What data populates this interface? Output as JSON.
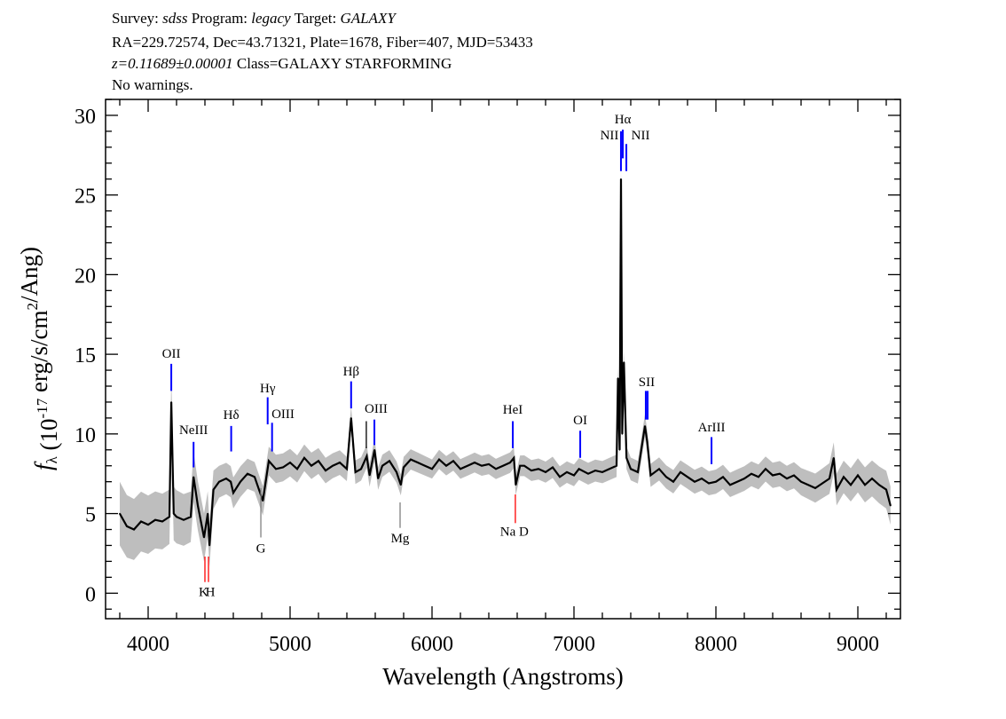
{
  "header": {
    "line1": {
      "survey_label": "Survey:",
      "survey": "sdss",
      "program_label": "Program:",
      "program": "legacy",
      "target_label": "Target:",
      "target": "GALAXY"
    },
    "line2": "RA=229.72574, Dec=43.71321, Plate=1678, Fiber=407, MJD=53433",
    "line3": {
      "redshift": "z=0.11689±0.00001",
      "class": "Class=GALAXY STARFORMING"
    },
    "line4": "No warnings."
  },
  "chart_data": {
    "type": "line",
    "xlabel": "Wavelength (Angstroms)",
    "ylabel": "fλ (10^-17 erg/s/cm^2/Ang)",
    "ylabel_parts": [
      {
        "t": "f",
        "style": "italic"
      },
      {
        "t": "λ",
        "style": "sub"
      },
      {
        "t": " (10",
        "style": "normal"
      },
      {
        "t": "-17",
        "style": "sup"
      },
      {
        "t": " erg/s/cm",
        "style": "normal"
      },
      {
        "t": "2",
        "style": "sup"
      },
      {
        "t": "/Ang)",
        "style": "normal"
      }
    ],
    "xlim": [
      3700,
      9300
    ],
    "ylim": [
      -1.6,
      31
    ],
    "xticks": [
      4000,
      5000,
      6000,
      7000,
      8000,
      9000
    ],
    "xtick_labels": [
      "4000",
      "5000",
      "6000",
      "7000",
      "8000",
      "9000"
    ],
    "yticks": [
      0,
      5,
      10,
      15,
      20,
      25,
      30
    ],
    "ytick_labels": [
      "0",
      "5",
      "10",
      "15",
      "20",
      "25",
      "30"
    ],
    "grid": false,
    "colors": {
      "flux": "#000000",
      "error_band": "#bebebe",
      "emission": "#0000ff",
      "absorption_strong": "#ff0000",
      "absorption": "#808080",
      "sky": "#000000"
    },
    "flux": [
      [
        3800,
        5.0
      ],
      [
        3850,
        4.2
      ],
      [
        3900,
        4.0
      ],
      [
        3950,
        4.5
      ],
      [
        4000,
        4.3
      ],
      [
        4050,
        4.6
      ],
      [
        4100,
        4.5
      ],
      [
        4150,
        4.8
      ],
      [
        4163,
        12.0
      ],
      [
        4180,
        5.0
      ],
      [
        4200,
        4.8
      ],
      [
        4250,
        4.6
      ],
      [
        4300,
        4.8
      ],
      [
        4320,
        7.3
      ],
      [
        4350,
        5.5
      ],
      [
        4394,
        3.5
      ],
      [
        4420,
        5.0
      ],
      [
        4432,
        3.0
      ],
      [
        4460,
        6.5
      ],
      [
        4500,
        7.0
      ],
      [
        4550,
        7.2
      ],
      [
        4582,
        7.0
      ],
      [
        4600,
        6.3
      ],
      [
        4650,
        7.0
      ],
      [
        4700,
        7.5
      ],
      [
        4750,
        7.3
      ],
      [
        4808,
        5.8
      ],
      [
        4850,
        8.3
      ],
      [
        4900,
        7.8
      ],
      [
        4950,
        7.9
      ],
      [
        5000,
        8.2
      ],
      [
        5050,
        7.8
      ],
      [
        5100,
        8.5
      ],
      [
        5150,
        8.0
      ],
      [
        5200,
        8.3
      ],
      [
        5250,
        7.7
      ],
      [
        5300,
        8.0
      ],
      [
        5350,
        8.2
      ],
      [
        5400,
        7.8
      ],
      [
        5430,
        11.0
      ],
      [
        5460,
        7.6
      ],
      [
        5500,
        7.8
      ],
      [
        5540,
        8.6
      ],
      [
        5560,
        7.4
      ],
      [
        5595,
        9.0
      ],
      [
        5620,
        7.2
      ],
      [
        5650,
        8.0
      ],
      [
        5700,
        8.3
      ],
      [
        5750,
        7.6
      ],
      [
        5780,
        6.8
      ],
      [
        5800,
        7.9
      ],
      [
        5850,
        8.4
      ],
      [
        5900,
        8.2
      ],
      [
        5950,
        8.0
      ],
      [
        6000,
        7.8
      ],
      [
        6050,
        8.4
      ],
      [
        6100,
        8.0
      ],
      [
        6150,
        8.3
      ],
      [
        6200,
        7.8
      ],
      [
        6250,
        8.0
      ],
      [
        6300,
        8.2
      ],
      [
        6350,
        8.0
      ],
      [
        6400,
        8.1
      ],
      [
        6450,
        7.8
      ],
      [
        6500,
        8.0
      ],
      [
        6550,
        8.2
      ],
      [
        6577,
        8.5
      ],
      [
        6590,
        6.8
      ],
      [
        6620,
        8.0
      ],
      [
        6650,
        8.0
      ],
      [
        6700,
        7.7
      ],
      [
        6750,
        7.8
      ],
      [
        6800,
        7.6
      ],
      [
        6850,
        7.9
      ],
      [
        6900,
        7.3
      ],
      [
        6950,
        7.6
      ],
      [
        7000,
        7.4
      ],
      [
        7035,
        7.8
      ],
      [
        7100,
        7.5
      ],
      [
        7150,
        7.7
      ],
      [
        7200,
        7.6
      ],
      [
        7250,
        7.8
      ],
      [
        7300,
        8.0
      ],
      [
        7310,
        13.5
      ],
      [
        7322,
        9.0
      ],
      [
        7331,
        26.0
      ],
      [
        7340,
        10.0
      ],
      [
        7352,
        14.5
      ],
      [
        7370,
        8.5
      ],
      [
        7400,
        7.8
      ],
      [
        7450,
        7.6
      ],
      [
        7500,
        10.5
      ],
      [
        7516,
        9.5
      ],
      [
        7540,
        7.4
      ],
      [
        7600,
        7.8
      ],
      [
        7650,
        7.3
      ],
      [
        7700,
        7.0
      ],
      [
        7750,
        7.6
      ],
      [
        7800,
        7.3
      ],
      [
        7850,
        7.0
      ],
      [
        7900,
        7.2
      ],
      [
        7950,
        6.9
      ],
      [
        8000,
        7.0
      ],
      [
        8050,
        7.3
      ],
      [
        8100,
        6.8
      ],
      [
        8150,
        7.0
      ],
      [
        8200,
        7.2
      ],
      [
        8250,
        7.5
      ],
      [
        8300,
        7.3
      ],
      [
        8350,
        7.8
      ],
      [
        8400,
        7.4
      ],
      [
        8450,
        7.5
      ],
      [
        8500,
        7.2
      ],
      [
        8550,
        7.4
      ],
      [
        8600,
        7.0
      ],
      [
        8650,
        6.8
      ],
      [
        8700,
        6.6
      ],
      [
        8750,
        6.9
      ],
      [
        8800,
        7.2
      ],
      [
        8830,
        8.5
      ],
      [
        8850,
        6.5
      ],
      [
        8900,
        7.3
      ],
      [
        8950,
        6.8
      ],
      [
        9000,
        7.4
      ],
      [
        9050,
        6.8
      ],
      [
        9100,
        7.2
      ],
      [
        9150,
        6.8
      ],
      [
        9200,
        6.5
      ],
      [
        9230,
        5.5
      ]
    ],
    "error_band": [
      [
        3800,
        2.0
      ],
      [
        4400,
        1.5
      ],
      [
        4500,
        1.0
      ],
      [
        6000,
        0.6
      ],
      [
        8500,
        0.8
      ],
      [
        9230,
        1.2
      ]
    ],
    "lines": [
      {
        "label": "OII",
        "wavelength": 4163,
        "kind": "emission",
        "tick": [
          12.7,
          14.4
        ],
        "label_wavelength": 4163,
        "label_flux": 15.06
      },
      {
        "label": "NeIII",
        "wavelength": 4320,
        "kind": "emission",
        "tick": [
          7.9,
          9.5
        ],
        "label_wavelength": 4320,
        "label_flux": 10.26
      },
      {
        "label": "Hδ",
        "wavelength": 4585,
        "kind": "emission",
        "tick": [
          8.9,
          10.5
        ],
        "label_wavelength": 4585,
        "label_flux": 11.21
      },
      {
        "label": "Hγ",
        "wavelength": 4842,
        "kind": "emission",
        "tick": [
          10.6,
          12.3
        ],
        "label_wavelength": 4842,
        "label_flux": 12.88
      },
      {
        "label": "OIII",
        "wavelength": 4873,
        "kind": "emission",
        "tick": [
          8.9,
          10.7
        ],
        "label_wavelength": 4950,
        "label_flux": 11.27
      },
      {
        "label": "Hβ",
        "wavelength": 5430,
        "kind": "emission",
        "tick": [
          11.6,
          13.3
        ],
        "label_wavelength": 5430,
        "label_flux": 13.94
      },
      {
        "label": "",
        "wavelength": 5537,
        "kind": "sky",
        "tick": [
          9.1,
          10.8
        ]
      },
      {
        "label": "OIII",
        "wavelength": 5594,
        "kind": "emission",
        "tick": [
          9.3,
          10.9
        ],
        "label_wavelength": 5606,
        "label_flux": 11.6
      },
      {
        "label": "HeI",
        "wavelength": 6569,
        "kind": "emission",
        "tick": [
          9.1,
          10.8
        ],
        "label_wavelength": 6569,
        "label_flux": 11.54
      },
      {
        "label": "OI",
        "wavelength": 7044,
        "kind": "emission",
        "tick": [
          8.5,
          10.2
        ],
        "label_wavelength": 7044,
        "label_flux": 10.88
      },
      {
        "label": "NII",
        "wavelength": 7331,
        "kind": "emission",
        "tick": [
          26.5,
          29.0
        ],
        "label_wavelength": 7250,
        "label_flux": 28.78
      },
      {
        "label": "Hα",
        "wavelength": 7344,
        "kind": "emission",
        "tick": [
          27.3,
          29.1
        ],
        "label_wavelength": 7344,
        "label_flux": 29.78
      },
      {
        "label": "NII",
        "wavelength": 7369,
        "kind": "emission",
        "tick": [
          26.5,
          28.2
        ],
        "label_wavelength": 7469,
        "label_flux": 28.78
      },
      {
        "label": "SII",
        "wavelength": 7506,
        "kind": "emission",
        "tick": [
          10.9,
          12.7
        ],
        "label_wavelength": 7512,
        "label_flux": 13.27
      },
      {
        "label": "",
        "wavelength": 7519,
        "kind": "emission",
        "tick": [
          10.9,
          12.7
        ]
      },
      {
        "label": "ArIII",
        "wavelength": 7969,
        "kind": "emission",
        "tick": [
          8.1,
          9.8
        ],
        "label_wavelength": 7969,
        "label_flux": 10.43
      },
      {
        "label": "",
        "wavelength": 4400,
        "kind": "absorption_strong",
        "tick": [
          0.7,
          2.3
        ]
      },
      {
        "label": "",
        "wavelength": 4425,
        "kind": "absorption_strong",
        "tick": [
          0.7,
          2.3
        ]
      },
      {
        "label": "K",
        "wavelength": 4394,
        "kind": "label_only",
        "label_wavelength": 4390,
        "label_flux": 0.11
      },
      {
        "label": "H",
        "wavelength": 4432,
        "kind": "label_only",
        "label_wavelength": 4438,
        "label_flux": 0.11
      },
      {
        "label": "G",
        "wavelength": 4794,
        "kind": "absorption",
        "tick": [
          3.5,
          6.6
        ],
        "label_wavelength": 4794,
        "label_flux": 2.84
      },
      {
        "label": "Mg",
        "wavelength": 5775,
        "kind": "absorption",
        "tick": [
          4.1,
          5.7
        ],
        "label_wavelength": 5775,
        "label_flux": 3.46
      },
      {
        "label": "Na D",
        "wavelength": 6587,
        "kind": "absorption_strong",
        "tick": [
          4.4,
          6.2
        ],
        "label_wavelength": 6580,
        "label_flux": 3.9
      }
    ]
  }
}
